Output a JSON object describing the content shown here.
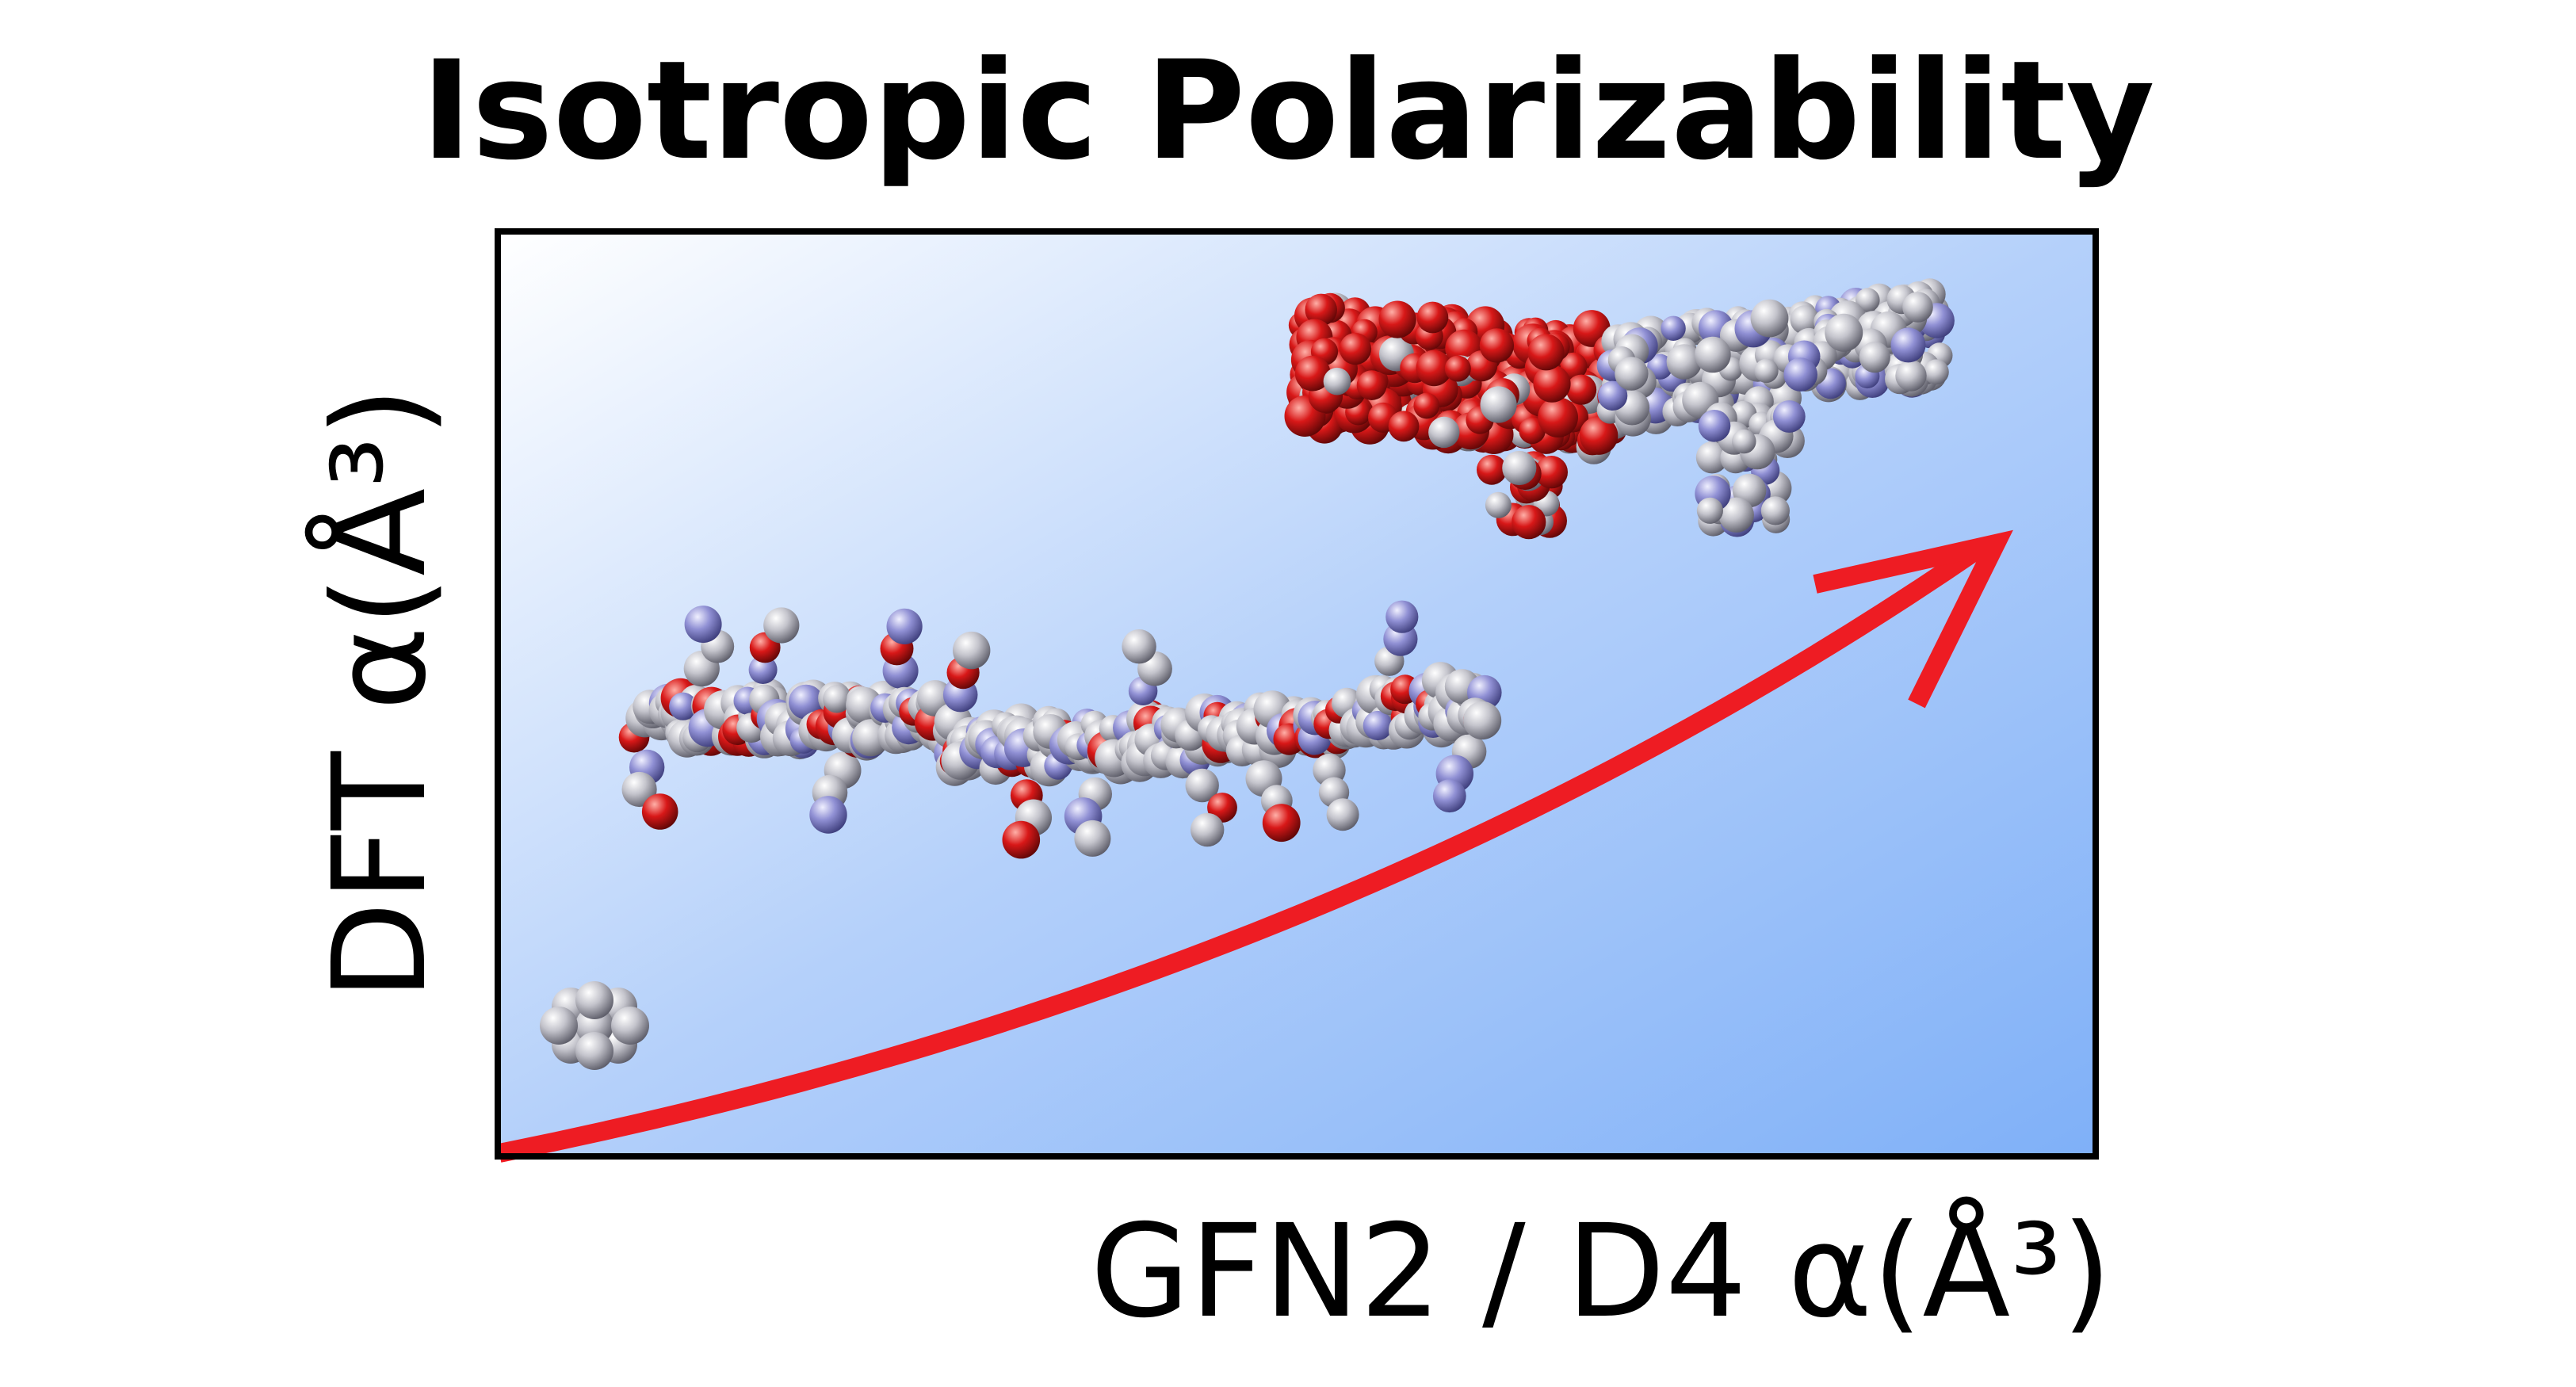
{
  "title": "Isotropic Polarizability",
  "xlabel": "GFN2 / D4  α(Å³)",
  "ylabel": "DFT  α(Å³)",
  "colors": {
    "gradient_light": "#ffffff",
    "gradient_dark": "#7fb0f8",
    "arrow": "#ee1c23",
    "frame": "#000000",
    "atom_red": "#d01818",
    "atom_gray": "#bcbcc4",
    "atom_blue": "#8a8acc"
  },
  "molecules": [
    {
      "name": "small-molecule",
      "coloring": "gray"
    },
    {
      "name": "medium-molecule-chain",
      "coloring": "gray-blue-red"
    },
    {
      "name": "large-molecule",
      "coloring": "red-gray"
    }
  ],
  "arrow": {
    "meaning": "increasing-trend"
  }
}
